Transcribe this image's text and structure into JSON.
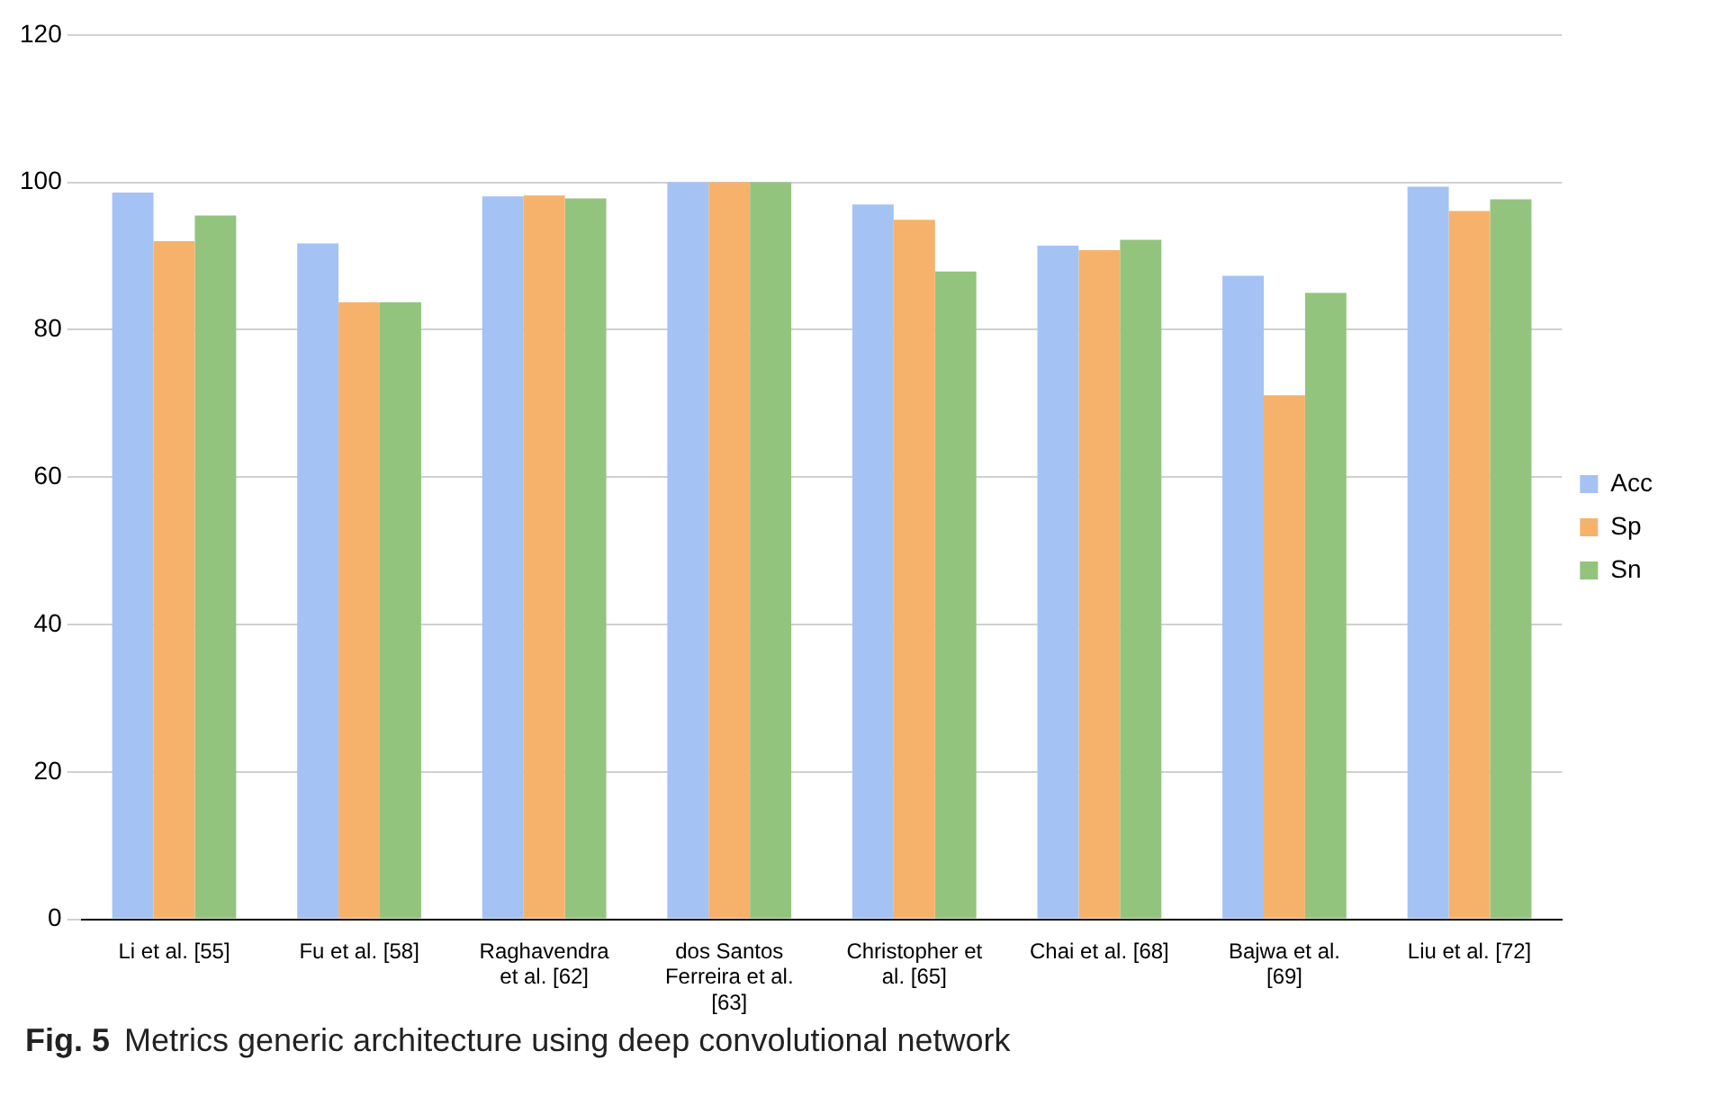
{
  "chart_data": {
    "type": "bar",
    "categories": [
      "Li et al. [55]",
      "Fu et al. [58]",
      "Raghavendra et al. [62]",
      "dos Santos Ferreira et al. [63]",
      "Christopher et al. [65]",
      "Chai et al. [68]",
      "Bajwa et al. [69]",
      "Liu et al. [72]"
    ],
    "series": [
      {
        "name": "Acc",
        "color": "#a4c2f4",
        "values": [
          98.6,
          91.7,
          98.1,
          100,
          97.0,
          91.4,
          87.3,
          99.4
        ]
      },
      {
        "name": "Sp",
        "color": "#f6b26b",
        "values": [
          92.0,
          83.7,
          98.2,
          100,
          94.9,
          90.8,
          71.1,
          96.1
        ]
      },
      {
        "name": "Sn",
        "color": "#93c47d",
        "values": [
          95.5,
          83.7,
          97.8,
          100,
          87.9,
          92.2,
          85.0,
          97.7
        ]
      }
    ],
    "ylim": [
      0,
      120
    ],
    "yticks": [
      0,
      20,
      40,
      60,
      80,
      100,
      120
    ],
    "grid": "y",
    "legend": "right",
    "annotations": [
      "Fig. 5",
      "Metrics generic architecture using deep convolutional network"
    ]
  }
}
